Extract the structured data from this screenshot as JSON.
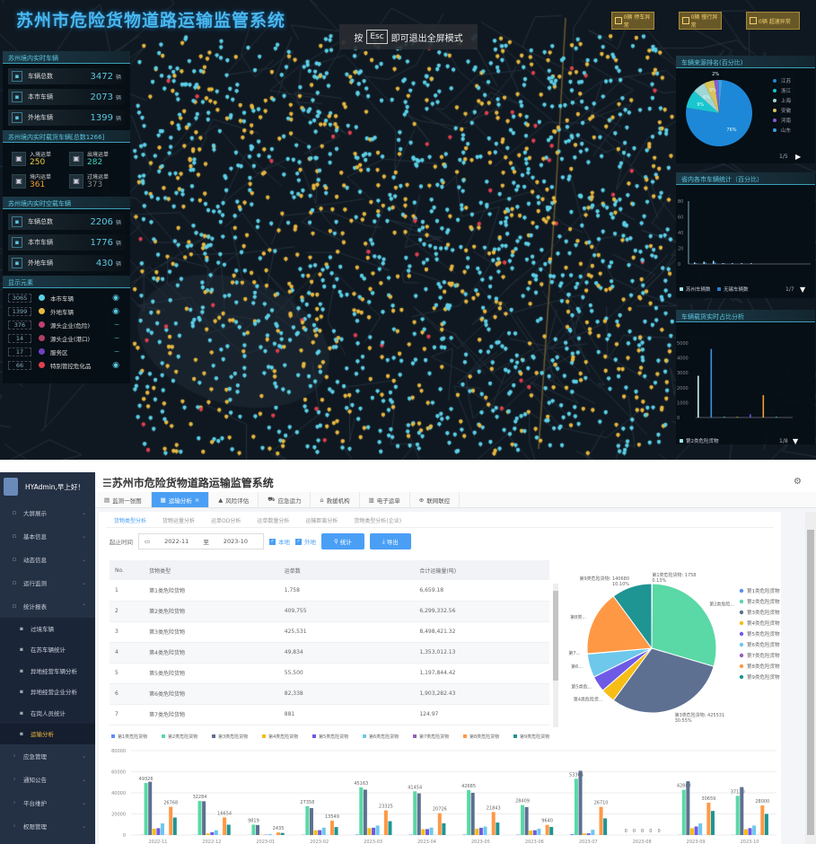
{
  "top": {
    "title": "苏州市危险货物道路运输监管系统",
    "esc_hint": {
      "prefix": "按",
      "key": "Esc",
      "suffix": "即可退出全屏模式"
    },
    "alerts": [
      {
        "label": "0辆 停车异常"
      },
      {
        "label": "0辆 慢行异常"
      },
      {
        "label": "0辆 超速异常"
      }
    ],
    "realtime": {
      "title": "苏州境内实时车辆",
      "rows": [
        {
          "icon": "truck-icon",
          "label": "车辆总数",
          "value": "3472",
          "unit": "辆"
        },
        {
          "icon": "location-icon",
          "label": "本市车辆",
          "value": "2073",
          "unit": "辆"
        },
        {
          "icon": "car-icon",
          "label": "外地车辆",
          "value": "1399",
          "unit": "辆"
        }
      ]
    },
    "loaded": {
      "title": "苏州境内实时载货车辆[总数1266]",
      "items": [
        {
          "label": "入境运单",
          "value": "250",
          "color": "#f0d040"
        },
        {
          "label": "出境运单",
          "value": "282",
          "color": "#40d0c0"
        },
        {
          "label": "境内运单",
          "value": "361",
          "color": "#f0a030"
        },
        {
          "label": "过境运单",
          "value": "373",
          "color": "#888888"
        }
      ]
    },
    "empty": {
      "title": "苏州境内实时空载车辆",
      "rows": [
        {
          "icon": "truck-icon",
          "label": "车辆总数",
          "value": "2206",
          "unit": "辆"
        },
        {
          "icon": "location-icon",
          "label": "本市车辆",
          "value": "1776",
          "unit": "辆"
        },
        {
          "icon": "car-icon",
          "label": "外地车辆",
          "value": "430",
          "unit": "辆"
        }
      ]
    },
    "elements": {
      "title": "显示元素",
      "items": [
        {
          "count": "3065",
          "label": "本市车辆",
          "color": "#5cd0e8",
          "visible": true
        },
        {
          "count": "1399",
          "label": "外地车辆",
          "color": "#e8b840",
          "visible": true
        },
        {
          "count": "376",
          "label": "源头企业(危险)",
          "color": "#c04070",
          "visible": false
        },
        {
          "count": "14",
          "label": "源头企业(港口)",
          "color": "#b04060",
          "visible": false
        },
        {
          "count": "17",
          "label": "服务区",
          "color": "#7040c0",
          "visible": false
        },
        {
          "count": "66",
          "label": "特别管控危化品",
          "color": "#e04050",
          "visible": true
        }
      ]
    },
    "source_pie": {
      "title": "车辆来源排名(百分比)",
      "pager": "1/5",
      "slices": [
        {
          "name": "江苏",
          "value": 76,
          "label": "76%",
          "color": "#1e88d8"
        },
        {
          "name": "浙江",
          "value": 9,
          "label": "9%",
          "color": "#19c6d0"
        },
        {
          "name": "上海",
          "value": 6,
          "label": "6%",
          "color": "#9fd6d6"
        },
        {
          "name": "安徽",
          "value": 5,
          "label": "5%",
          "color": "#d6c55a"
        },
        {
          "name": "河南",
          "value": 2,
          "label": "2%",
          "color": "#8a5ad6"
        },
        {
          "name": "山东",
          "value": 2,
          "label": "",
          "color": "#3aa0e0"
        }
      ]
    },
    "city_bar": {
      "title": "省内各市车辆统计（百分比）",
      "pager": "1/7",
      "yticks": [
        "0",
        "20",
        "40",
        "60",
        "80"
      ],
      "legend": [
        {
          "name": "苏州车辆数",
          "color": "#a0e0f0"
        },
        {
          "name": "无锡车辆数",
          "color": "#2a80d0"
        }
      ],
      "values": [
        [
          2,
          1
        ],
        [
          3,
          2
        ],
        [
          4,
          2
        ],
        [
          1,
          1
        ],
        [
          1,
          0
        ],
        [
          1,
          0
        ],
        [
          1,
          0
        ],
        [
          0,
          0
        ],
        [
          0,
          0
        ],
        [
          0,
          0
        ],
        [
          0,
          0
        ],
        [
          0,
          0
        ],
        [
          0,
          0
        ]
      ]
    },
    "cargo_bar": {
      "title": "车辆载货实时占比分析",
      "pager": "1/8",
      "yticks": [
        "0",
        "1000",
        "2000",
        "3000",
        "4000",
        "5000"
      ],
      "legend": "第2类危险货物",
      "values": [
        {
          "v": 2800,
          "c": "#c0f0f0"
        },
        {
          "v": 4600,
          "c": "#3a90e0"
        },
        {
          "v": 60,
          "c": "#30c0a0"
        },
        {
          "v": 40,
          "c": "#e0d040"
        },
        {
          "v": 220,
          "c": "#7050e0"
        },
        {
          "v": 1500,
          "c": "#f0a030"
        },
        {
          "v": 60,
          "c": "#30b0a0"
        }
      ]
    }
  },
  "app": {
    "user": "HYAdmin,早上好！",
    "title": "☰苏州市危险货物道路运输监管系统",
    "menu": [
      {
        "label": "大屏展示",
        "icon": "monitor-icon"
      },
      {
        "label": "基本信息",
        "icon": "doc-icon"
      },
      {
        "label": "动态信息",
        "icon": "search-icon"
      },
      {
        "label": "运行监测",
        "icon": "screen-icon"
      },
      {
        "label": "统计报表",
        "icon": "chart-icon",
        "expanded": true
      }
    ],
    "submenu": [
      {
        "label": "过境车辆"
      },
      {
        "label": "在苏车辆统计"
      },
      {
        "label": "异地经营车辆分析"
      },
      {
        "label": "异地经营企业分析"
      },
      {
        "label": "在岗人员统计"
      },
      {
        "label": "运输分析",
        "active": true
      }
    ],
    "menu2": [
      {
        "label": "应急管理"
      },
      {
        "label": "通知公告"
      },
      {
        "label": "平台维护"
      },
      {
        "label": "权限管理"
      }
    ],
    "tabs": [
      {
        "label": "监测一张图",
        "icon": "▤"
      },
      {
        "label": "运输分析",
        "icon": "▦",
        "active": true,
        "close": "×"
      },
      {
        "label": "风险评估",
        "icon": "▲"
      },
      {
        "label": "应急运力",
        "icon": "⛟"
      },
      {
        "label": "救援机构",
        "icon": "⌂"
      },
      {
        "label": "电子运单",
        "icon": "▥"
      },
      {
        "label": "联网联控",
        "icon": "⊕"
      }
    ],
    "subtabs": [
      "货物类型分析",
      "货物运量分析",
      "运单OD分析",
      "运单数量分析",
      "运输距离分析",
      "货物类型分析(企业)"
    ],
    "filter": {
      "label": "起止时间",
      "start": "2022-11",
      "sep": "至",
      "end": "2023-10",
      "local": "本地",
      "nonlocal": "外地",
      "stat": "统计",
      "export": "导出"
    },
    "table": {
      "headers": [
        "No.",
        "货物类型",
        "运单数",
        "合计运输量(吨)"
      ],
      "rows": [
        [
          "1",
          "第1类危险货物",
          "1,758",
          "6,659.18"
        ],
        [
          "2",
          "第2类危险货物",
          "409,755",
          "6,299,332.56"
        ],
        [
          "3",
          "第3类危险货物",
          "425,531",
          "8,498,421.32"
        ],
        [
          "4",
          "第4类危险货物",
          "49,834",
          "1,353,012.13"
        ],
        [
          "5",
          "第5类危险货物",
          "55,500",
          "1,197,844.42"
        ],
        [
          "6",
          "第6类危险货物",
          "82,338",
          "1,903,282.43"
        ],
        [
          "7",
          "第7类危险货物",
          "881",
          "124.97"
        ]
      ]
    }
  },
  "chart_data": [
    {
      "type": "pie",
      "title": "",
      "series_name": "运单数",
      "slices": [
        {
          "name": "第1类危险货物",
          "value": 1758,
          "label": "第1类危险货物: 1758",
          "pct": "0.13%",
          "color": "#5b8ff9"
        },
        {
          "name": "第2类危险货物",
          "value": 409755,
          "label": "第2类危险...",
          "color": "#5ad8a6"
        },
        {
          "name": "第3类危险货物",
          "value": 425531,
          "label": "第3类危险货物: 425531",
          "pct": "30.55%",
          "color": "#5d7092"
        },
        {
          "name": "第4类危险货物",
          "value": 49834,
          "label": "第4类危险货...",
          "color": "#f6bd16"
        },
        {
          "name": "第5类危险货物",
          "value": 55500,
          "label": "第5类危...",
          "color": "#6e5ae6"
        },
        {
          "name": "第6类危险货物",
          "value": 82338,
          "label": "第6...",
          "color": "#6dc8ec"
        },
        {
          "name": "第7类危险货物",
          "value": 881,
          "label": "第7...",
          "color": "#945fb9"
        },
        {
          "name": "第8类危险货物",
          "value": 226600,
          "label": "第8类...",
          "color": "#ff9845"
        },
        {
          "name": "第9类危险货物",
          "value": 140680,
          "label": "第9类危险货物: 140680",
          "pct": "10.10%",
          "color": "#1e9493"
        }
      ],
      "legend": "right"
    },
    {
      "type": "bar",
      "title": "",
      "ylim": [
        0,
        80000
      ],
      "yticks": [
        "0",
        "20000",
        "40000",
        "60000",
        "80000"
      ],
      "legend": "top",
      "categories": [
        "2022-11",
        "2022-12",
        "2023-01",
        "2023-02",
        "2023-03",
        "2023-04",
        "2023-05",
        "2023-06",
        "2023-07",
        "2023-08",
        "2023-09",
        "2023-10"
      ],
      "series": [
        {
          "name": "第1类危险货物",
          "color": "#5b8ff9",
          "values": [
            170,
            160,
            81,
            230,
            460,
            390,
            460,
            380,
            840,
            0,
            150,
            150
          ]
        },
        {
          "name": "第2类危险货物",
          "color": "#5ad8a6",
          "values": [
            49326,
            32284,
            9819,
            27358,
            45163,
            41454,
            42685,
            28409,
            53364,
            0,
            42888,
            37130
          ]
        },
        {
          "name": "第3类危险货物",
          "color": "#5d7092",
          "values": [
            50500,
            32000,
            9500,
            25500,
            43000,
            39500,
            40000,
            26500,
            60913,
            0,
            50988,
            45416
          ]
        },
        {
          "name": "第4类危险货物",
          "color": "#f6bd16",
          "values": [
            6000,
            1500,
            300,
            4500,
            6500,
            5500,
            6000,
            4200,
            1500,
            0,
            6500,
            5500
          ]
        },
        {
          "name": "第5类危险货物",
          "color": "#6e5ae6",
          "values": [
            6464,
            2716,
            316,
            4602,
            6915,
            5626,
            6874,
            4520,
            1584,
            0,
            8094,
            6523
          ]
        },
        {
          "name": "第6类危险货物",
          "color": "#6dc8ec",
          "values": [
            11000,
            4500,
            800,
            7000,
            9000,
            7000,
            8000,
            6000,
            5000,
            0,
            11000,
            9000
          ]
        },
        {
          "name": "第7类危险货物",
          "color": "#945fb9",
          "values": [
            96,
            100,
            50,
            71,
            116,
            117,
            96,
            89,
            84,
            0,
            76,
            70
          ]
        },
        {
          "name": "第8类危险货物",
          "color": "#ff9845",
          "values": [
            26768,
            16654,
            2435,
            13549,
            23325,
            20726,
            21843,
            9640,
            26710,
            0,
            30659,
            28000
          ]
        },
        {
          "name": "第9类危险货物",
          "color": "#1e9493",
          "values": [
            16602,
            9795,
            2000,
            7549,
            13121,
            11106,
            11813,
            7640,
            15799,
            0,
            22825,
            19995
          ]
        }
      ]
    }
  ]
}
